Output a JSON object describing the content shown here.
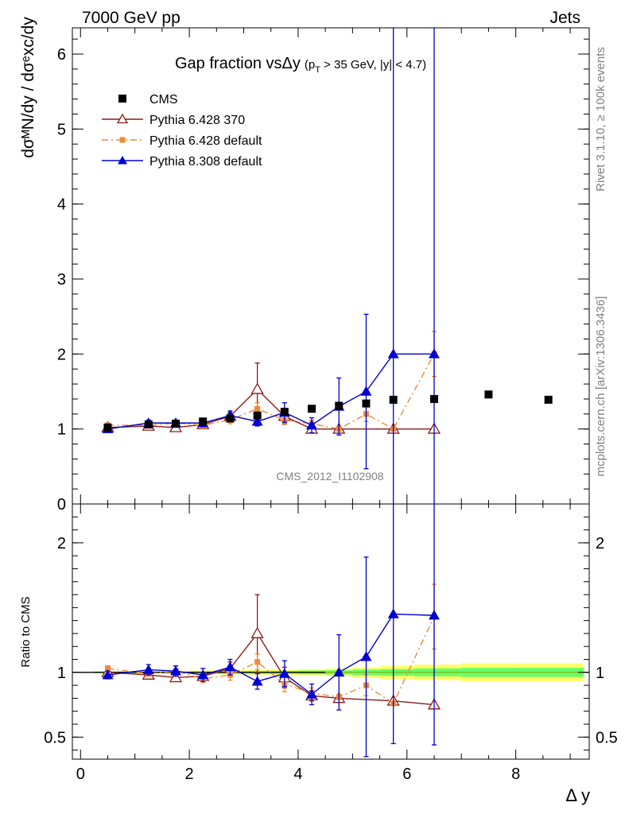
{
  "header": {
    "left": "7000 GeV pp",
    "right": "Jets"
  },
  "side_right_top": "Rivet 3.1.10, ≥ 100k events",
  "side_right_bottom": "mcplots.cern.ch [arXiv:1306.3436]",
  "watermark": "CMS_2012_I1102908",
  "title": {
    "main": "Gap fraction vsΔy",
    "cut_prefix": "(p",
    "cut_sub": "T",
    "cut_rest": " > 35 GeV, |y| < 4.7)"
  },
  "ylabel_top": "dσᴹN/dy / dσᵉxc/dy",
  "ylabel_bottom": "Ratio to CMS",
  "xlabel": "Δ y",
  "colors": {
    "cms": "#000000",
    "p370": "#8b1a1a",
    "pdef": "#f0883a",
    "p8": "#0000d0",
    "band_inner": "#66ff66",
    "band_outer": "#ffff66",
    "ratio_line": "#88cc22"
  },
  "legend": [
    {
      "label": "CMS",
      "key": "cms"
    },
    {
      "label": "Pythia 6.428 370",
      "key": "p370"
    },
    {
      "label": "Pythia 6.428 default",
      "key": "pdef"
    },
    {
      "label": "Pythia 8.308 default",
      "key": "p8"
    }
  ],
  "chart_data": {
    "type": "scatter",
    "xlim": [
      -0.15,
      9.35
    ],
    "main": {
      "ylim": [
        0,
        6.35
      ],
      "yticks": [
        0,
        1,
        2,
        3,
        4,
        5,
        6
      ]
    },
    "ratio": {
      "ylim": [
        0.33,
        2.3
      ],
      "yticks": [
        0.5,
        1,
        2
      ]
    },
    "xticks": [
      0,
      2,
      4,
      6,
      8
    ],
    "cms": {
      "x": [
        0.5,
        1.25,
        1.75,
        2.25,
        2.75,
        3.25,
        3.75,
        4.25,
        4.75,
        5.25,
        5.75,
        6.5,
        7.5,
        8.6
      ],
      "y": [
        1.02,
        1.06,
        1.07,
        1.1,
        1.14,
        1.18,
        1.23,
        1.27,
        1.31,
        1.34,
        1.39,
        1.4,
        1.46,
        1.39
      ],
      "band_rel_inner": [
        0.006,
        0.006,
        0.006,
        0.008,
        0.01,
        0.01,
        0.012,
        0.014,
        0.016,
        0.022,
        0.025,
        0.03,
        0.035,
        0.035
      ],
      "band_rel_outer": [
        0.01,
        0.01,
        0.012,
        0.014,
        0.016,
        0.018,
        0.02,
        0.025,
        0.03,
        0.04,
        0.05,
        0.06,
        0.07,
        0.07
      ]
    },
    "series": [
      {
        "key": "p370",
        "name": "Pythia 6.428 370",
        "marker": "triangle-open",
        "dash": "",
        "x": [
          0.5,
          1.25,
          1.75,
          2.25,
          2.75,
          3.25,
          3.75,
          4.25,
          4.75,
          5.75,
          6.5
        ],
        "y": [
          1.02,
          1.04,
          1.02,
          1.06,
          1.17,
          1.53,
          1.17,
          1.0,
          1.0,
          1.0,
          1.0
        ],
        "err": [
          0.02,
          0.02,
          0.03,
          0.03,
          0.05,
          0.35,
          0.1,
          0.05,
          0.03,
          0.0,
          0.0
        ],
        "ratio": [
          1.0,
          0.98,
          0.96,
          0.97,
          1.03,
          1.3,
          0.96,
          0.82,
          0.8,
          0.78,
          0.75
        ],
        "ratio_err": [
          0.02,
          0.02,
          0.03,
          0.03,
          0.05,
          0.3,
          0.08,
          0.04,
          0.02,
          0.0,
          0.0
        ]
      },
      {
        "key": "pdef",
        "name": "Pythia 6.428 default",
        "marker": "square-small",
        "dash": "8,4,2,4",
        "x": [
          0.5,
          1.25,
          1.75,
          2.25,
          2.75,
          3.25,
          3.75,
          4.25,
          4.75,
          5.25,
          5.75,
          6.5
        ],
        "y": [
          1.05,
          1.05,
          1.08,
          1.05,
          1.12,
          1.27,
          1.12,
          1.07,
          1.0,
          1.2,
          1.0,
          2.0
        ],
        "err": [
          0.03,
          0.03,
          0.04,
          0.04,
          0.05,
          0.08,
          0.06,
          0.05,
          0.03,
          0.1,
          0.0,
          0.3
        ],
        "ratio": [
          1.03,
          0.99,
          1.01,
          0.95,
          0.98,
          1.08,
          0.91,
          0.84,
          0.81,
          0.9,
          0.76,
          1.43
        ],
        "ratio_err": [
          0.02,
          0.02,
          0.04,
          0.03,
          0.04,
          0.06,
          0.06,
          0.04,
          0.02,
          0.08,
          0.0,
          0.25
        ]
      },
      {
        "key": "p8",
        "name": "Pythia 8.308 default",
        "marker": "triangle-filled",
        "dash": "",
        "x": [
          0.5,
          1.25,
          1.75,
          2.25,
          2.75,
          3.25,
          3.75,
          4.25,
          4.75,
          5.25,
          5.75,
          6.5
        ],
        "y": [
          1.0,
          1.08,
          1.08,
          1.08,
          1.18,
          1.1,
          1.22,
          1.05,
          1.3,
          1.5,
          2.0,
          2.0
        ],
        "err": [
          0.03,
          0.04,
          0.04,
          0.05,
          0.06,
          0.06,
          0.13,
          0.1,
          0.38,
          1.03,
          5.0,
          5.0
        ],
        "ratio": [
          0.98,
          1.02,
          1.01,
          0.98,
          1.04,
          0.93,
          0.99,
          0.83,
          1.0,
          1.12,
          1.45,
          1.44
        ],
        "ratio_err": [
          0.03,
          0.04,
          0.04,
          0.05,
          0.06,
          0.06,
          0.1,
          0.08,
          0.29,
          0.77,
          1.0,
          1.0
        ]
      }
    ]
  }
}
